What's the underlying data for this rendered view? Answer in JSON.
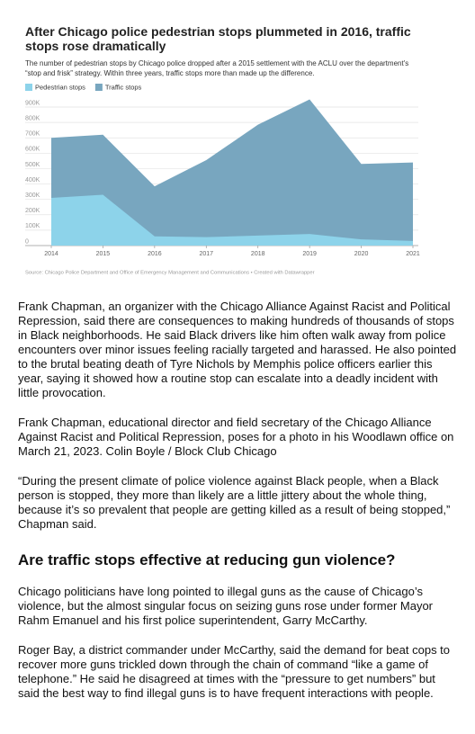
{
  "chart_data": {
    "type": "area",
    "title": "After Chicago police pedestrian stops plummeted in 2016, traffic stops rose dramatically",
    "subtitle": "The number of pedestrian stops by Chicago police dropped after a 2015 settlement with the ACLU over the department's “stop and frisk” strategy. Within three years, traffic stops more than made up the difference.",
    "x": [
      2014,
      2015,
      2016,
      2017,
      2018,
      2019,
      2020,
      2021
    ],
    "series": [
      {
        "name": "Pedestrian stops",
        "color": "#8dd3ea",
        "values": [
          310000,
          330000,
          60000,
          55000,
          65000,
          75000,
          40000,
          30000
        ]
      },
      {
        "name": "Traffic stops",
        "color": "#78a6bf",
        "values": [
          700000,
          720000,
          385000,
          555000,
          785000,
          950000,
          530000,
          540000
        ]
      }
    ],
    "xlim": [
      2014,
      2021
    ],
    "xticks": [
      2014,
      2015,
      2016,
      2017,
      2018,
      2019,
      2020,
      2021
    ],
    "ylim": [
      0,
      900000
    ],
    "yticks": [
      0,
      {
        "value": 100000,
        "label": "100K"
      },
      {
        "value": 200000,
        "label": "200K"
      },
      {
        "value": 300000,
        "label": "300K"
      },
      {
        "value": 400000,
        "label": "400K"
      },
      {
        "value": 500000,
        "label": "500K"
      },
      {
        "value": 600000,
        "label": "600K"
      },
      {
        "value": 700000,
        "label": "700K"
      },
      {
        "value": 800000,
        "label": "800K"
      },
      {
        "value": 900000,
        "label": "900K"
      }
    ],
    "grid": true,
    "source": "Source: Chicago Police Department and Office of Emergency Management and Communications • Created with Datawrapper"
  },
  "article": {
    "paragraphs": [
      "Frank Chapman, an organizer with the Chicago Alliance Against Racist and Political Repression, said there are consequences to making hundreds of thousands of stops in Black neighborhoods. He said Black drivers like him often walk away from police encounters over minor issues feeling racially targeted and harassed. He also pointed to the brutal beating death of Tyre Nichols by Memphis police officers earlier this year, saying it showed how a routine stop can escalate into a deadly incident with little provocation.",
      "Frank Chapman, educational director and field secretary of the Chicago Alliance Against Racist and Political Repression, poses for a photo in his Woodlawn office on March 21, 2023. Colin Boyle / Block Club Chicago",
      "“During the present climate of police violence against Black people, when a Black person is stopped, they more than likely are a little jittery about the whole thing, because it’s so prevalent that people are getting killed as a result of being stopped,” Chapman said."
    ],
    "heading": "Are traffic stops effective at reducing gun violence?",
    "paragraphs_2": [
      "Chicago politicians have long pointed to illegal guns as the cause of Chicago’s violence, but the almost singular focus on seizing guns rose under former Mayor Rahm Emanuel and his first police superintendent, Garry McCarthy.",
      "Roger Bay, a district commander under McCarthy, said the demand for beat cops to recover more guns trickled down through the chain of command “like a game of telephone.” He said he disagreed at times with the “pressure to get numbers” but said the best way to find illegal guns is to have frequent interactions with people."
    ]
  }
}
